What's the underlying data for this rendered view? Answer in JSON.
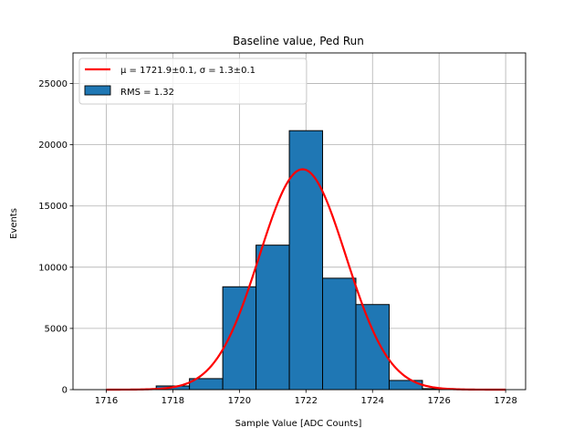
{
  "chart_data": {
    "type": "bar",
    "title": "Baseline value, Ped Run",
    "xlabel": "Sample Value [ADC Counts]",
    "ylabel": "Events",
    "xlim": [
      1715.0,
      1728.6
    ],
    "ylim": [
      0,
      27500
    ],
    "xticks": [
      "1716",
      "1718",
      "1720",
      "1722",
      "1724",
      "1726",
      "1728"
    ],
    "yticks": [
      "0",
      "5000",
      "10000",
      "15000",
      "20000",
      "25000"
    ],
    "grid": true,
    "legend_position": "upper-left",
    "bins": [
      {
        "x0": 1715.5,
        "x1": 1716.5,
        "value": 0
      },
      {
        "x0": 1716.5,
        "x1": 1717.5,
        "value": 0
      },
      {
        "x0": 1717.5,
        "x1": 1718.5,
        "value": 300
      },
      {
        "x0": 1718.5,
        "x1": 1719.5,
        "value": 900
      },
      {
        "x0": 1719.5,
        "x1": 1720.5,
        "value": 8400
      },
      {
        "x0": 1720.5,
        "x1": 1721.5,
        "value": 11800
      },
      {
        "x0": 1721.5,
        "x1": 1722.5,
        "value": 21150
      },
      {
        "x0": 1722.5,
        "x1": 1723.5,
        "value": 9100
      },
      {
        "x0": 1723.5,
        "x1": 1724.5,
        "value": 6950
      },
      {
        "x0": 1724.5,
        "x1": 1725.5,
        "value": 750
      },
      {
        "x0": 1725.5,
        "x1": 1726.5,
        "value": 80
      },
      {
        "x0": 1726.5,
        "x1": 1727.5,
        "value": 0
      }
    ],
    "histogram_series": {
      "name": "RMS = 1.32",
      "fill": "#1f77b4",
      "edge": "#000000"
    },
    "fit_series": {
      "name": "μ = 1721.9±0.1, σ = 1.3±0.1",
      "color": "#ff0000",
      "mu": 1721.9,
      "sigma": 1.3,
      "amplitude": 18000,
      "x_range": [
        1716,
        1728
      ]
    }
  }
}
